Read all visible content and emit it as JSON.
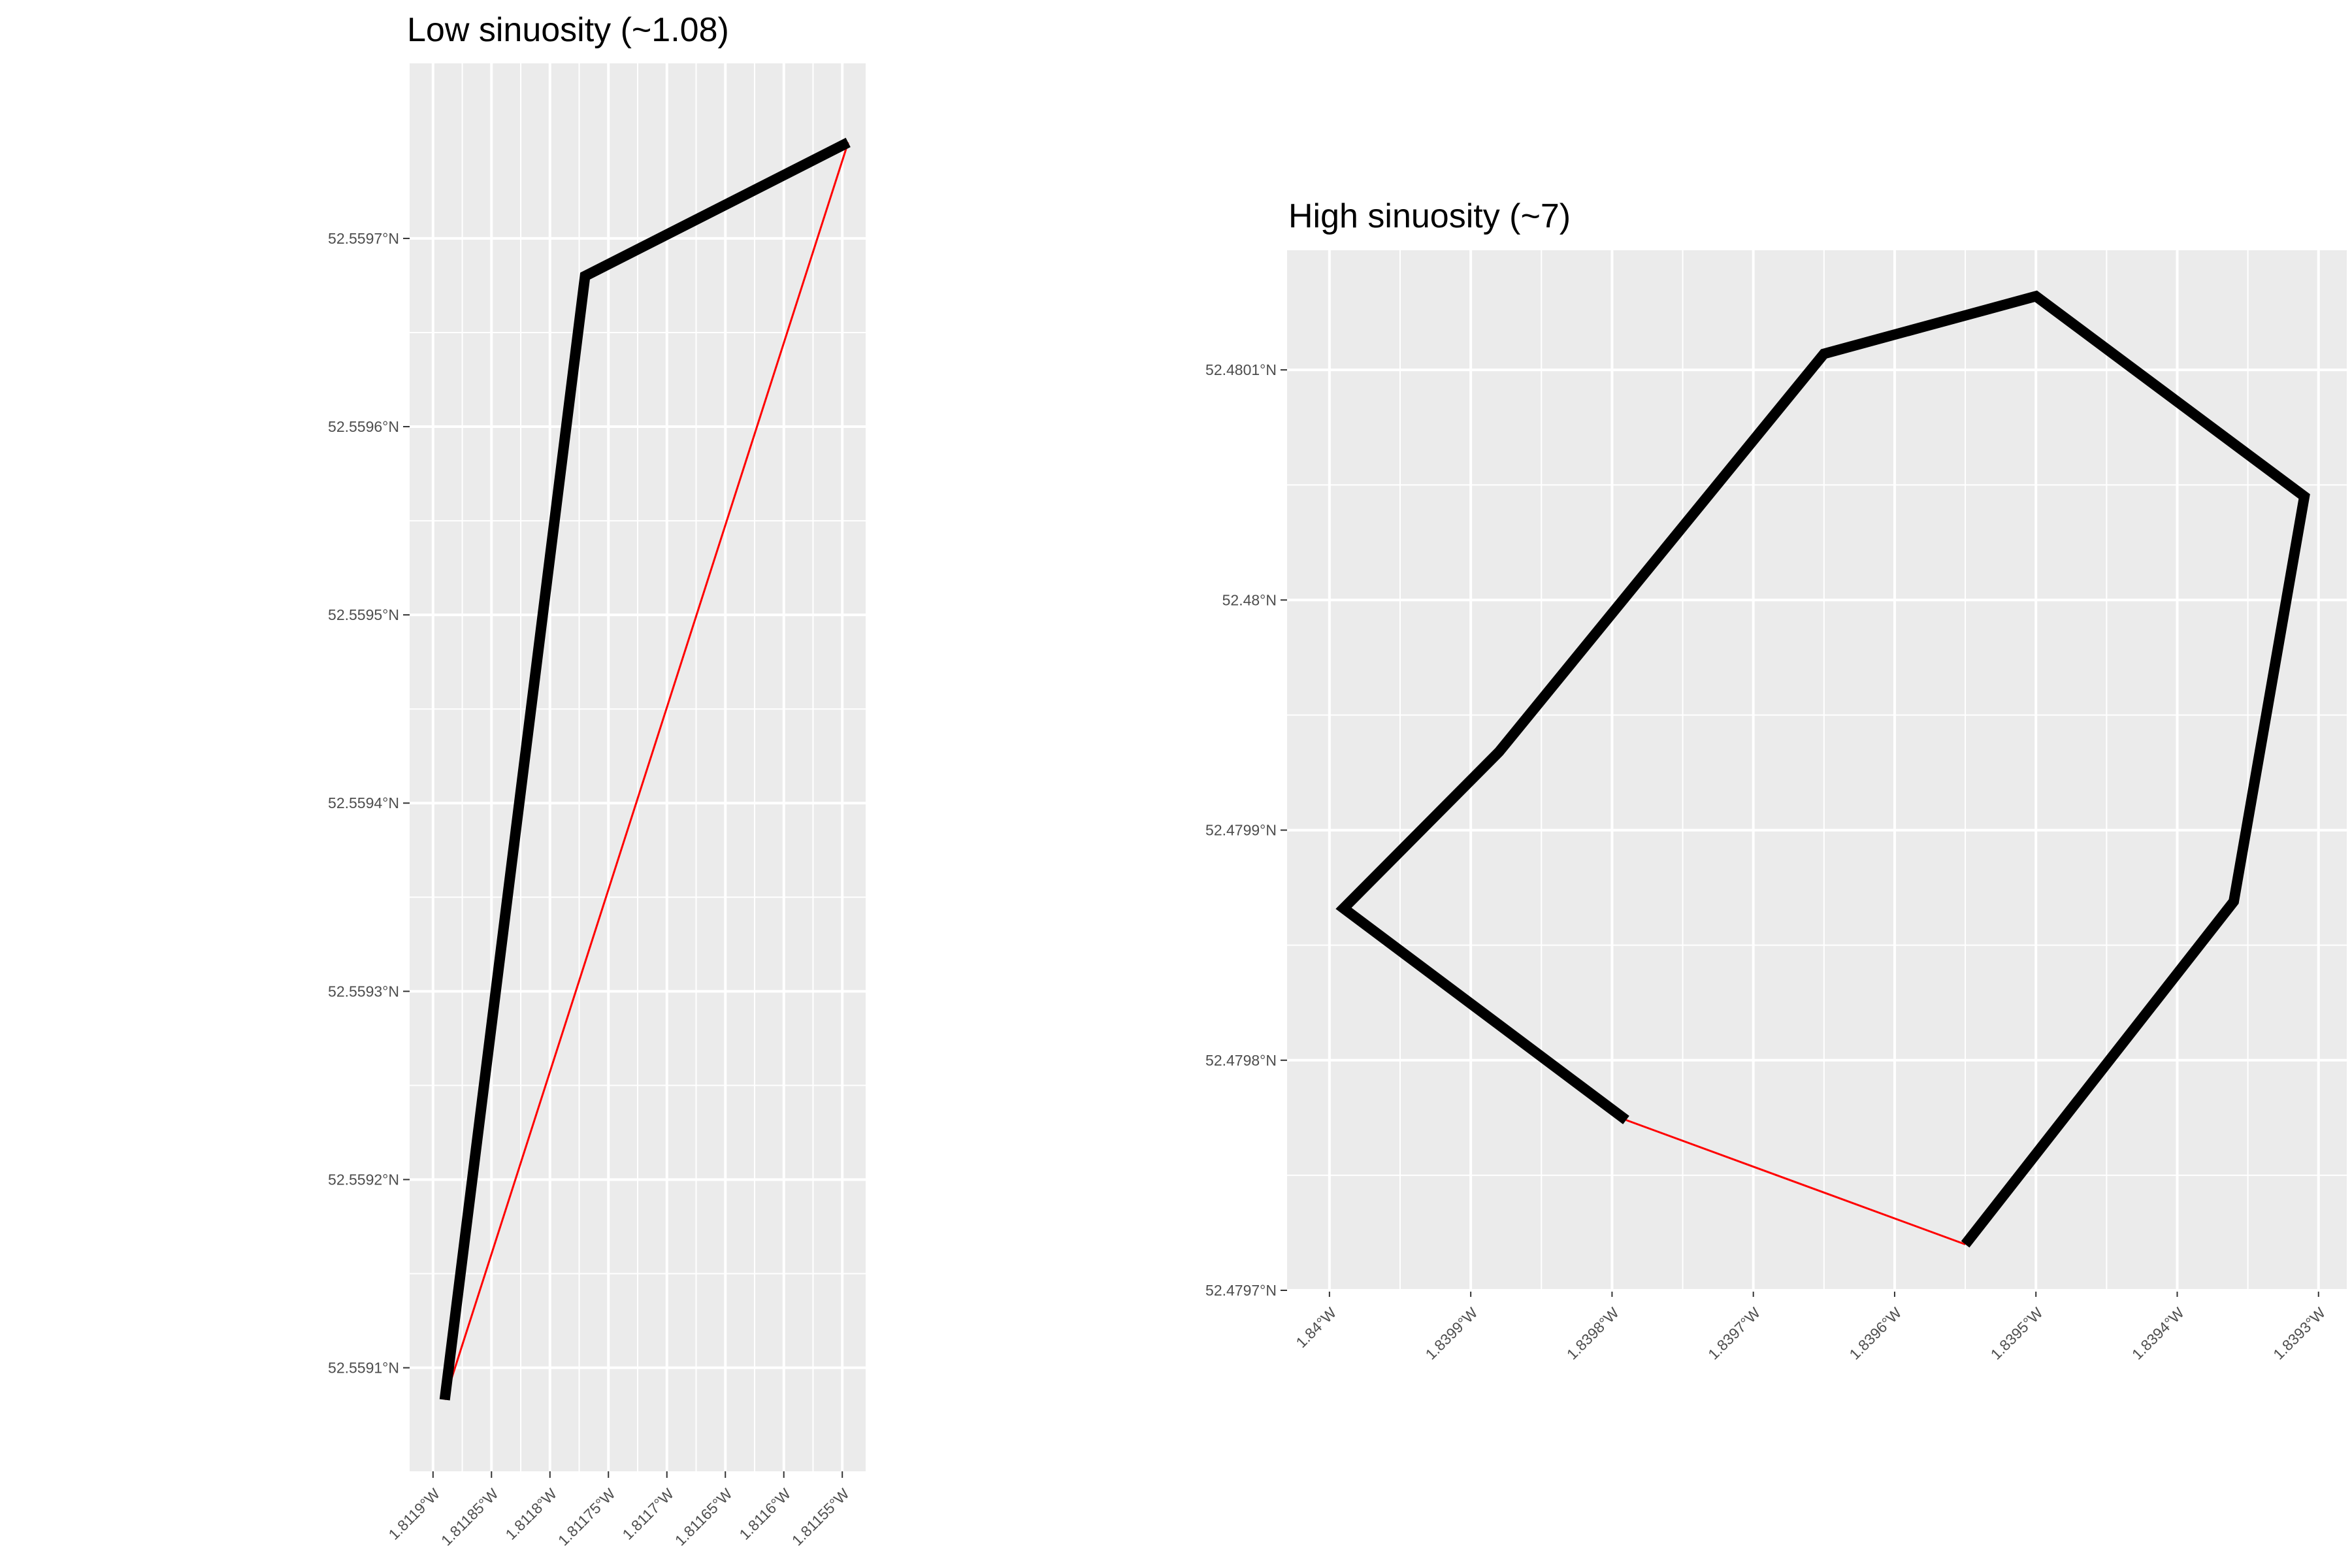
{
  "chart_data": [
    {
      "type": "line",
      "title": "Low sinuosity (~1.08)",
      "xlabel": "",
      "ylabel": "",
      "x_ticks": [
        {
          "value": -1.8119,
          "label": "1.8119°W"
        },
        {
          "value": -1.81185,
          "label": "1.81185°W"
        },
        {
          "value": -1.8118,
          "label": "1.8118°W"
        },
        {
          "value": -1.81175,
          "label": "1.81175°W"
        },
        {
          "value": -1.8117,
          "label": "1.8117°W"
        },
        {
          "value": -1.81165,
          "label": "1.81165°W"
        },
        {
          "value": -1.8116,
          "label": "1.8116°W"
        },
        {
          "value": -1.81155,
          "label": "1.81155°W"
        }
      ],
      "y_ticks": [
        {
          "value": 52.5591,
          "label": "52.5591°N"
        },
        {
          "value": 52.5592,
          "label": "52.5592°N"
        },
        {
          "value": 52.5593,
          "label": "52.5593°N"
        },
        {
          "value": 52.5594,
          "label": "52.5594°N"
        },
        {
          "value": 52.5595,
          "label": "52.5595°N"
        },
        {
          "value": 52.5596,
          "label": "52.5596°N"
        },
        {
          "value": 52.5597,
          "label": "52.5597°N"
        }
      ],
      "xlim": [
        -1.81192,
        -1.81153
      ],
      "ylim": [
        52.559045,
        52.559793
      ],
      "grid": true,
      "series": [
        {
          "role": "track",
          "color": "#000000",
          "points": [
            {
              "x": -1.81189,
              "y": 52.559083
            },
            {
              "x": -1.81177,
              "y": 52.55968
            },
            {
              "x": -1.811545,
              "y": 52.559751
            }
          ]
        },
        {
          "role": "straight-line",
          "color": "#ff0000",
          "points": [
            {
              "x": -1.81189,
              "y": 52.559083
            },
            {
              "x": -1.811545,
              "y": 52.559751
            }
          ]
        }
      ]
    },
    {
      "type": "line",
      "title": "High sinuosity (~7)",
      "xlabel": "",
      "ylabel": "",
      "x_ticks": [
        {
          "value": -1.84,
          "label": "1.84°W"
        },
        {
          "value": -1.8399,
          "label": "1.8399°W"
        },
        {
          "value": -1.8398,
          "label": "1.8398°W"
        },
        {
          "value": -1.8397,
          "label": "1.8397°W"
        },
        {
          "value": -1.8396,
          "label": "1.8396°W"
        },
        {
          "value": -1.8395,
          "label": "1.8395°W"
        },
        {
          "value": -1.8394,
          "label": "1.8394°W"
        },
        {
          "value": -1.8393,
          "label": "1.8393°W"
        }
      ],
      "y_ticks": [
        {
          "value": 52.4797,
          "label": "52.4797°N"
        },
        {
          "value": 52.4798,
          "label": "52.4798°N"
        },
        {
          "value": 52.4799,
          "label": "52.4799°N"
        },
        {
          "value": 52.48,
          "label": "52.48°N"
        },
        {
          "value": 52.4801,
          "label": "52.4801°N"
        }
      ],
      "xlim": [
        -1.84003,
        -1.83928
      ],
      "ylim": [
        52.4797,
        52.480152
      ],
      "grid": true,
      "series": [
        {
          "role": "track",
          "color": "#000000",
          "points": [
            {
              "x": -1.83979,
              "y": 52.479774
            },
            {
              "x": -1.83999,
              "y": 52.479866
            },
            {
              "x": -1.83988,
              "y": 52.479934
            },
            {
              "x": -1.83965,
              "y": 52.480107
            },
            {
              "x": -1.8395,
              "y": 52.480132
            },
            {
              "x": -1.83931,
              "y": 52.480045
            },
            {
              "x": -1.83936,
              "y": 52.479869
            },
            {
              "x": -1.83955,
              "y": 52.47972
            }
          ]
        },
        {
          "role": "straight-line",
          "color": "#ff0000",
          "points": [
            {
              "x": -1.83979,
              "y": 52.479774
            },
            {
              "x": -1.83955,
              "y": 52.47972
            }
          ]
        }
      ]
    }
  ]
}
